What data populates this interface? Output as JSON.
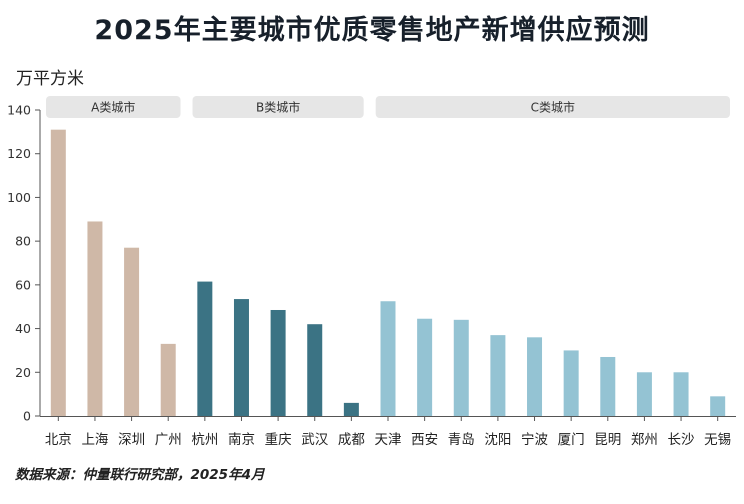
{
  "chart_data": {
    "type": "bar",
    "title": "2025年主要城市优质零售地产新增供应预测",
    "ylabel": "万平方米",
    "ylim": [
      0,
      140
    ],
    "yticks": [
      0,
      20,
      40,
      60,
      80,
      100,
      120,
      140
    ],
    "grid": false,
    "categories": [
      "北京",
      "上海",
      "深圳",
      "广州",
      "杭州",
      "南京",
      "重庆",
      "武汉",
      "成都",
      "天津",
      "西安",
      "青岛",
      "沈阳",
      "宁波",
      "厦门",
      "昆明",
      "郑州",
      "长沙",
      "无锡"
    ],
    "values": [
      131,
      89,
      77,
      33,
      61.5,
      53.5,
      48.5,
      42,
      6,
      52.5,
      44.5,
      44,
      37,
      36,
      30,
      27,
      20,
      20,
      9
    ],
    "groups": [
      {
        "label": "A类城市",
        "start": 0,
        "end": 3,
        "color": "#cfb8a7"
      },
      {
        "label": "B类城市",
        "start": 4,
        "end": 8,
        "color": "#3b7384"
      },
      {
        "label": "C类城市",
        "start": 9,
        "end": 18,
        "color": "#94c3d3"
      }
    ],
    "source": "数据来源：仲量联行研究部，2025年4月"
  }
}
